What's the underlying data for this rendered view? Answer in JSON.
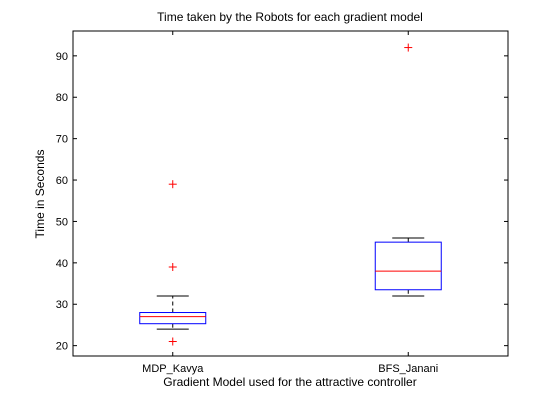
{
  "chart_data": {
    "type": "boxplot",
    "title": "Time taken by the Robots for each gradient model",
    "xlabel": "Gradient Model used for the attractive controller",
    "ylabel": "Time in Seconds",
    "ylim": [
      17.5,
      96
    ],
    "yticks": [
      20,
      30,
      40,
      50,
      60,
      70,
      80,
      90
    ],
    "grid": false,
    "categories": [
      "MDP_Kavya",
      "BFS_Janani"
    ],
    "boxes": [
      {
        "category": "MDP_Kavya",
        "whisker_low": 24,
        "q1": 25.3,
        "median": 27,
        "q3": 28,
        "whisker_high": 32,
        "outliers": [
          21,
          39,
          59
        ]
      },
      {
        "category": "BFS_Janani",
        "whisker_low": 32,
        "q1": 33.5,
        "median": 38,
        "q3": 45,
        "whisker_high": 46,
        "outliers": [
          92
        ]
      }
    ],
    "colors": {
      "box": "#0000ff",
      "median": "#ff0000",
      "whisker": "#000000",
      "outlier": "#ff0000"
    }
  }
}
